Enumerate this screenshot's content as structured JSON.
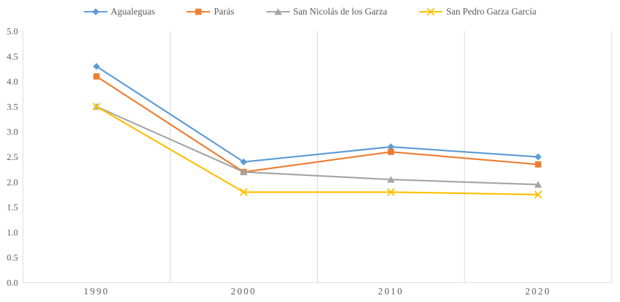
{
  "chart_data": {
    "type": "line",
    "title": "",
    "categories": [
      "1990",
      "2000",
      "2010",
      "2020"
    ],
    "series": [
      {
        "name": "Agualeguas",
        "color": "#5B9BD5",
        "marker": "diamond",
        "values": [
          4.3,
          2.4,
          2.7,
          2.5
        ]
      },
      {
        "name": "Parás",
        "color": "#ED7D31",
        "marker": "square",
        "values": [
          4.1,
          2.2,
          2.6,
          2.35
        ]
      },
      {
        "name": "San Nicolás de los Garza",
        "color": "#A5A5A5",
        "marker": "triangle",
        "values": [
          3.5,
          2.2,
          2.05,
          1.95
        ]
      },
      {
        "name": "San Pedro Garza García",
        "color": "#FFC000",
        "marker": "x",
        "values": [
          3.5,
          1.8,
          1.8,
          1.75
        ]
      }
    ],
    "xlabel": "",
    "ylabel": "",
    "ylim": [
      0,
      5
    ],
    "ytick_step": 0.5,
    "ytick_labels": [
      "0.0",
      "0.5",
      "1.0",
      "1.5",
      "2.0",
      "2.5",
      "3.0",
      "3.5",
      "4.0",
      "4.5",
      "5.0"
    ],
    "grid": "vertical-only",
    "legend_position": "top",
    "axis_color": "#D9D9D9",
    "text_color": "#595959"
  }
}
